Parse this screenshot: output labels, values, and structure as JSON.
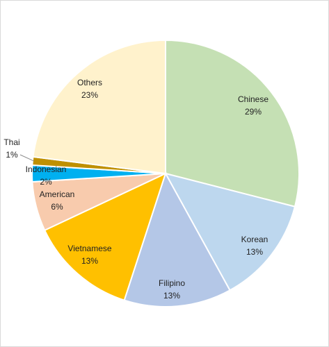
{
  "chart_data": {
    "type": "pie",
    "title": "",
    "legend": "none",
    "start_angle_deg": 0,
    "direction": "clockwise",
    "slices": [
      {
        "label": "Chinese",
        "value": 29,
        "value_label": "29%",
        "color": "#c5e0b4"
      },
      {
        "label": "Korean",
        "value": 13,
        "value_label": "13%",
        "color": "#bdd7ee"
      },
      {
        "label": "Filipino",
        "value": 13,
        "value_label": "13%",
        "color": "#b4c7e7"
      },
      {
        "label": "Vietnamese",
        "value": 13,
        "value_label": "13%",
        "color": "#ffc000"
      },
      {
        "label": "American",
        "value": 6,
        "value_label": "6%",
        "color": "#f8cbad"
      },
      {
        "label": "Indonesian",
        "value": 2,
        "value_label": "2%",
        "color": "#00b0f0"
      },
      {
        "label": "Thai",
        "value": 1,
        "value_label": "1%",
        "color": "#bf9000"
      },
      {
        "label": "Others",
        "value": 23,
        "value_label": "23%",
        "color": "#fff2cc"
      }
    ]
  }
}
